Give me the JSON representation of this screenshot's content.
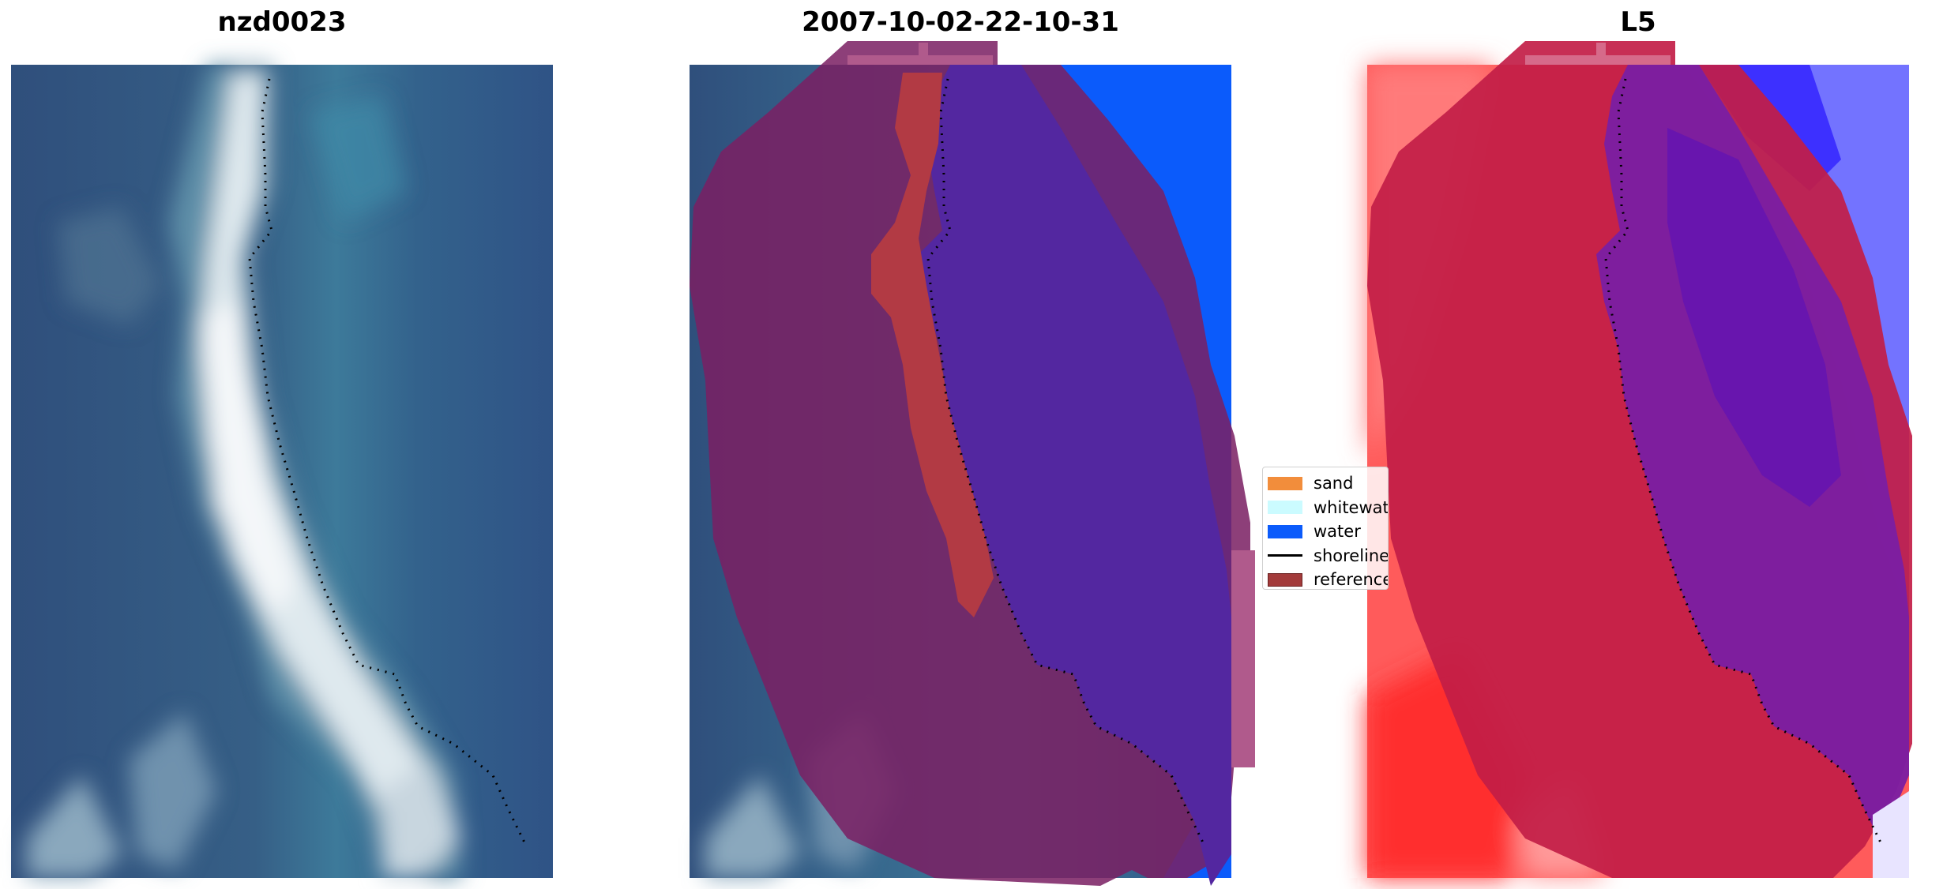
{
  "panels": [
    {
      "title": "nzd0023",
      "kind": "rgb"
    },
    {
      "title": "2007-10-02-22-10-31",
      "kind": "classified"
    },
    {
      "title": "L5",
      "kind": "index"
    }
  ],
  "legend": {
    "items": [
      {
        "label": "sand",
        "type": "patch",
        "color": "#f28d3b"
      },
      {
        "label": "whitewater",
        "type": "patch",
        "color": "#cbfbff"
      },
      {
        "label": "water",
        "type": "patch",
        "color": "#0b5bfb"
      },
      {
        "label": "shoreline",
        "type": "line",
        "color": "#000000"
      },
      {
        "label": "reference",
        "type": "patch",
        "color": "#a33b3b"
      }
    ]
  },
  "colors": {
    "image_deep_water": "#2f4f7c",
    "image_teal_water": "#3b7f9e",
    "image_white_sand": "#e8eff4",
    "buffer_overlay": "#7a1f63",
    "classified_water": "#5327a0",
    "classified_sand": "#b23a44",
    "open_water": "#0b5bfb",
    "index_land": "#ff3a3a",
    "index_buffer": "#c21d47",
    "index_water": "#6b1fb0",
    "index_water_high": "#7373ff"
  }
}
